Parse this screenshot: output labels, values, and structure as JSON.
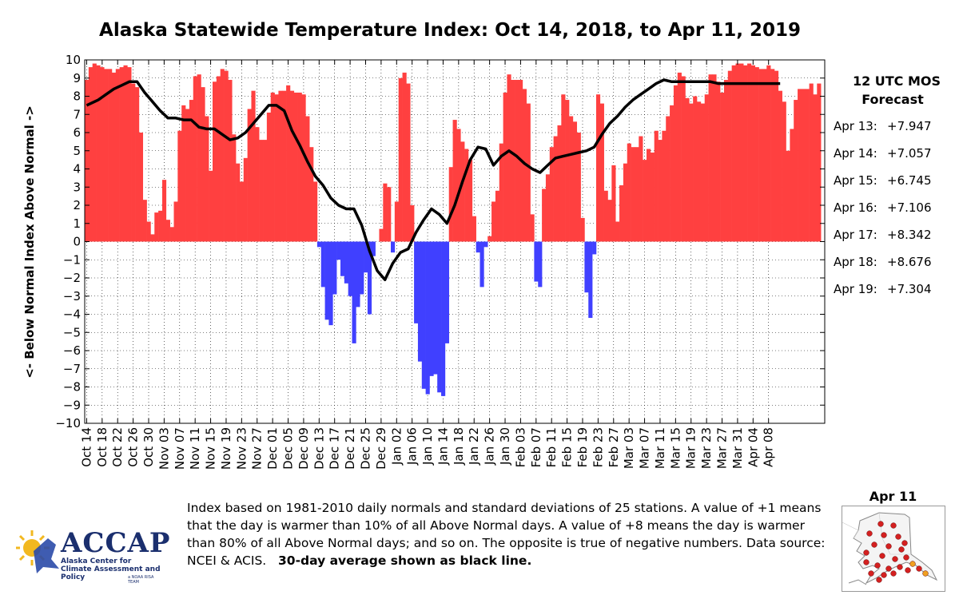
{
  "chart_data": {
    "type": "bar",
    "title": "Alaska Statewide Temperature Index: Oct 14, 2018, to Apr 11, 2019",
    "ylabel": "<- Below Normal   Index   Above Normal ->",
    "ylim": [
      -10,
      10
    ],
    "yticks": [
      -10,
      -9,
      -8,
      -7,
      -6,
      -5,
      -4,
      -3,
      -2,
      -1,
      0,
      1,
      2,
      3,
      4,
      5,
      6,
      7,
      8,
      9,
      10
    ],
    "grid": true,
    "start_date": "2018-10-14",
    "xtick_labels": [
      "Oct 14",
      "Oct 18",
      "Oct 22",
      "Oct 26",
      "Oct 30",
      "Nov 03",
      "Nov 07",
      "Nov 11",
      "Nov 15",
      "Nov 19",
      "Nov 23",
      "Nov 27",
      "Dec 01",
      "Dec 05",
      "Dec 09",
      "Dec 13",
      "Dec 17",
      "Dec 21",
      "Dec 25",
      "Dec 29",
      "Jan 02",
      "Jan 06",
      "Jan 10",
      "Jan 14",
      "Jan 18",
      "Jan 22",
      "Jan 26",
      "Jan 30",
      "Feb 03",
      "Feb 07",
      "Feb 11",
      "Feb 15",
      "Feb 19",
      "Feb 23",
      "Feb 27",
      "Mar 03",
      "Mar 07",
      "Mar 11",
      "Mar 15",
      "Mar 19",
      "Mar 23",
      "Mar 27",
      "Mar 31",
      "Apr 04",
      "Apr 08"
    ],
    "series": [
      {
        "name": "Daily index",
        "values": [
          8.9,
          9.6,
          9.8,
          9.7,
          9.6,
          9.5,
          9.5,
          9.3,
          9.5,
          9.6,
          9.7,
          9.6,
          8.7,
          8.5,
          6.0,
          2.3,
          1.1,
          0.4,
          1.6,
          1.7,
          3.4,
          1.2,
          0.8,
          2.2,
          6.1,
          7.5,
          7.3,
          7.8,
          9.1,
          9.2,
          8.5,
          6.9,
          3.9,
          8.8,
          9.1,
          9.5,
          9.4,
          8.9,
          5.9,
          4.3,
          3.3,
          4.6,
          7.3,
          8.3,
          6.3,
          5.6,
          5.6,
          7.1,
          8.2,
          8.1,
          8.3,
          8.3,
          8.6,
          8.3,
          8.2,
          8.2,
          8.1,
          6.9,
          5.2,
          3.3,
          -0.3,
          -2.5,
          -4.3,
          -4.6,
          -2.9,
          -1.0,
          -1.9,
          -2.3,
          -3.0,
          -5.6,
          -3.6,
          -2.9,
          -1.7,
          -4.0,
          -0.8,
          0.0,
          0.7,
          3.2,
          3.0,
          -0.6,
          2.2,
          9.0,
          9.3,
          8.7,
          2.0,
          -4.5,
          -6.6,
          -8.1,
          -8.4,
          -7.4,
          -7.3,
          -8.3,
          -8.5,
          -5.6,
          4.1,
          6.7,
          6.2,
          5.5,
          5.1,
          4.5,
          1.4,
          -0.6,
          -2.5,
          -0.3,
          0.3,
          2.2,
          2.8,
          5.4,
          8.2,
          9.2,
          8.9,
          8.9,
          8.9,
          8.4,
          7.6,
          1.5,
          -2.2,
          -2.5,
          2.9,
          3.7,
          5.2,
          5.8,
          6.4,
          8.1,
          7.8,
          6.9,
          6.6,
          6.0,
          1.3,
          -2.8,
          -4.2,
          -0.7,
          8.1,
          7.6,
          2.8,
          2.3,
          4.2,
          1.1,
          3.1,
          4.3,
          5.4,
          5.2,
          5.2,
          5.8,
          4.5,
          5.1,
          4.9,
          6.1,
          5.6,
          6.1,
          6.9,
          7.5,
          8.6,
          9.3,
          9.1,
          7.9,
          7.6,
          8.0,
          7.7,
          7.6,
          8.1,
          9.2,
          9.2,
          8.8,
          8.2,
          8.9,
          9.4,
          9.7,
          9.8,
          9.8,
          9.7,
          9.8,
          9.7,
          9.6,
          9.5,
          9.5,
          9.7,
          9.5,
          9.4,
          8.3,
          7.7,
          5.0,
          6.2,
          7.8,
          8.4,
          8.4,
          8.4,
          8.7,
          8.1,
          8.7
        ]
      },
      {
        "name": "30-day average",
        "x_days": [
          0,
          3,
          5,
          7,
          9,
          11,
          13,
          15,
          17,
          19,
          21,
          23,
          25,
          27,
          29,
          31,
          33,
          35,
          37,
          39,
          41,
          43,
          45,
          47,
          49,
          51,
          53,
          55,
          57,
          59,
          61,
          63,
          65,
          67,
          69,
          71,
          73,
          75,
          77,
          79,
          81,
          83,
          85,
          87,
          89,
          91,
          93,
          95,
          97,
          99,
          101,
          103,
          105,
          107,
          109,
          111,
          113,
          115,
          117,
          119,
          121,
          123,
          125,
          127,
          129,
          131,
          133,
          135,
          137,
          139,
          141,
          143,
          145,
          147,
          149,
          151,
          153,
          155,
          157,
          159,
          161,
          163,
          165,
          167,
          169,
          171,
          173,
          175,
          177,
          179
        ],
        "values": [
          7.5,
          7.8,
          8.1,
          8.4,
          8.6,
          8.8,
          8.8,
          8.2,
          7.7,
          7.2,
          6.8,
          6.8,
          6.7,
          6.7,
          6.3,
          6.2,
          6.2,
          5.9,
          5.6,
          5.7,
          6.0,
          6.5,
          7.0,
          7.5,
          7.5,
          7.2,
          6.1,
          5.3,
          4.4,
          3.6,
          3.1,
          2.4,
          2.0,
          1.8,
          1.8,
          0.9,
          -0.5,
          -1.6,
          -2.1,
          -1.2,
          -0.6,
          -0.4,
          0.5,
          1.2,
          1.8,
          1.5,
          1.0,
          2.0,
          3.3,
          4.5,
          5.2,
          5.1,
          4.2,
          4.7,
          5.0,
          4.7,
          4.3,
          4.0,
          3.8,
          4.2,
          4.6,
          4.7,
          4.8,
          4.9,
          5.0,
          5.2,
          5.9,
          6.5,
          6.9,
          7.4,
          7.8,
          8.1,
          8.4,
          8.7,
          8.9,
          8.8,
          8.8,
          8.8,
          8.8,
          8.8,
          8.8,
          8.7,
          8.7,
          8.7,
          8.7,
          8.7,
          8.7,
          8.7,
          8.7,
          8.7
        ]
      }
    ],
    "colors": {
      "positive": "#ff4040",
      "negative": "#4040ff",
      "average_line": "#000000"
    },
    "annotation": "30-day average shown as black line."
  },
  "forecast": {
    "title_line1": "12 UTC MOS",
    "title_line2": "Forecast",
    "rows": [
      {
        "date": "Apr 13:",
        "value": "+7.947"
      },
      {
        "date": "Apr 14:",
        "value": "+7.057"
      },
      {
        "date": "Apr 15:",
        "value": "+6.745"
      },
      {
        "date": "Apr 16:",
        "value": "+7.106"
      },
      {
        "date": "Apr 17:",
        "value": "+8.342"
      },
      {
        "date": "Apr 18:",
        "value": "+8.676"
      },
      {
        "date": "Apr 19:",
        "value": "+7.304"
      }
    ]
  },
  "note": {
    "text": "Index based on 1981-2010 daily normals and standard deviations of 25 stations. A value of +1 means that the day is warmer than 10% of all Above Normal days. A value of +8 means the day is warmer than 80% of all Above Normal days; and so on. The opposite is true of negative numbers. Data source: NCEI & ACIS.",
    "bold": "30-day average shown as black line."
  },
  "logo": {
    "name": "ACCAP",
    "subtitle": "Alaska Center for Climate Assessment and Policy",
    "tag": "a NOAA RISA TEAM"
  },
  "map": {
    "title": "Apr 11",
    "station_colors": [
      "#d42020",
      "#f0a020"
    ]
  }
}
